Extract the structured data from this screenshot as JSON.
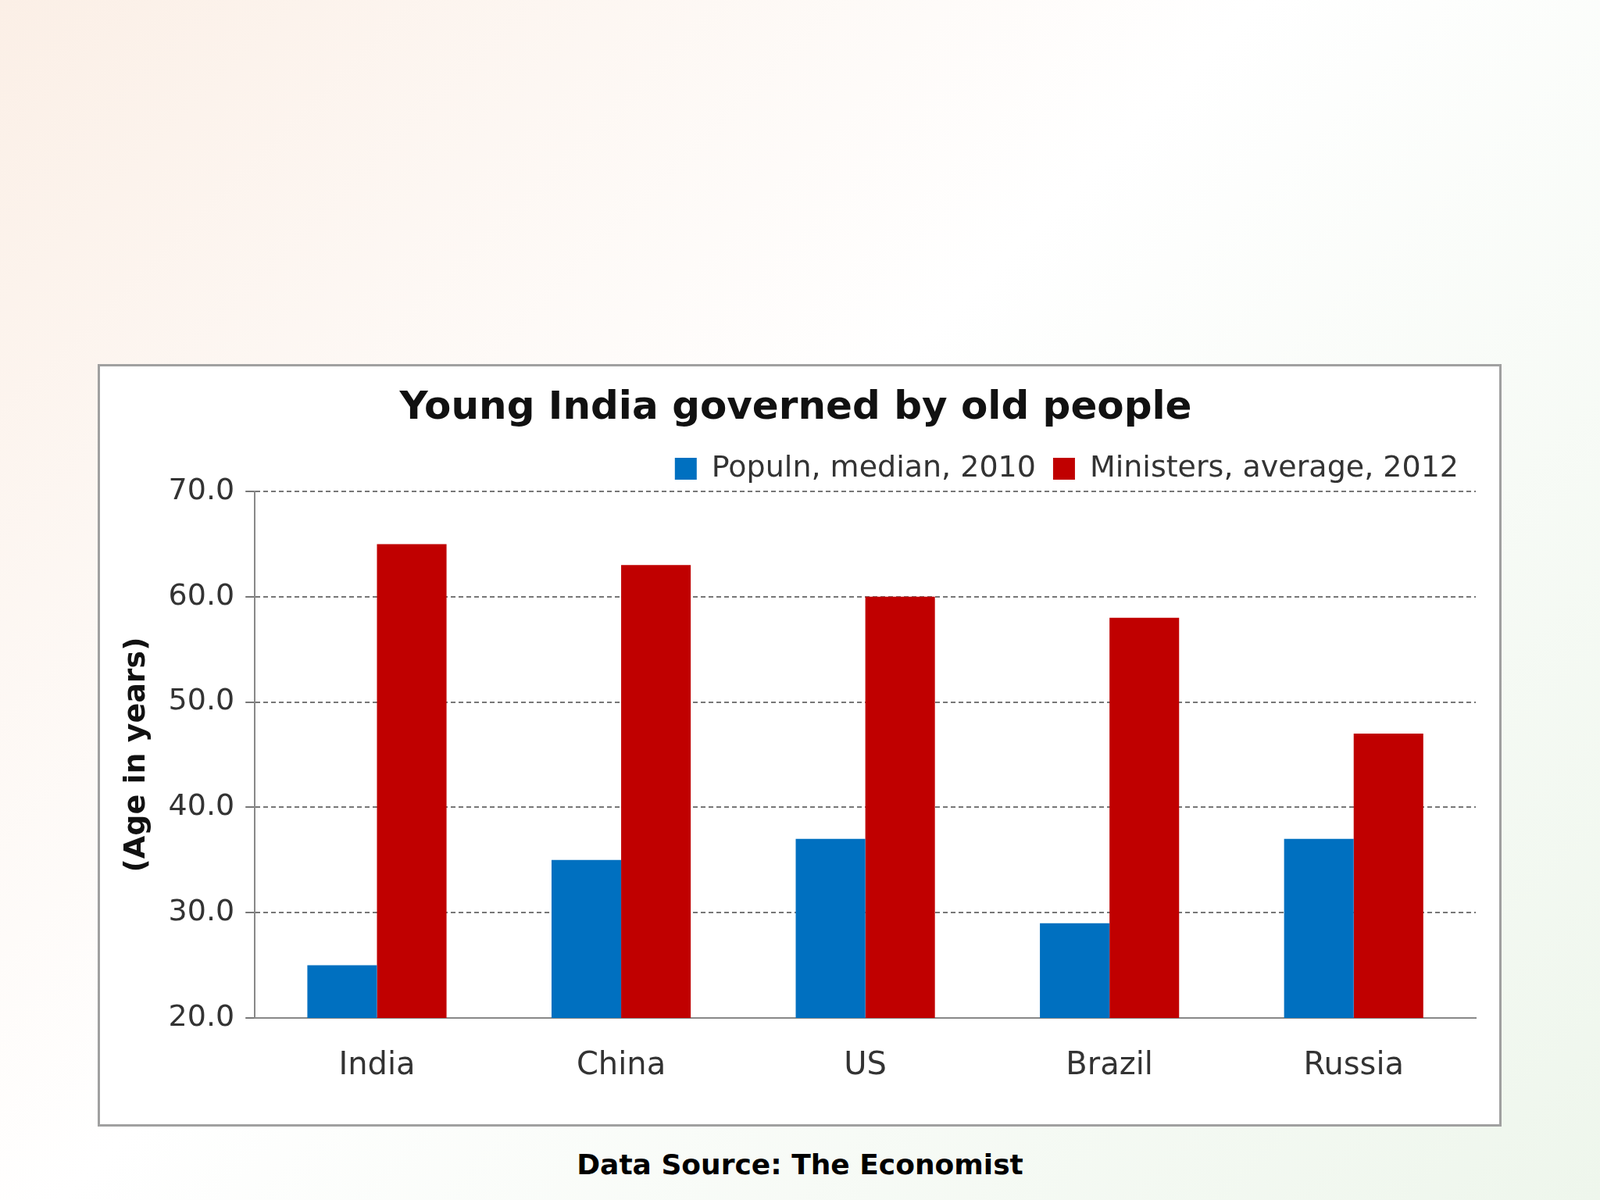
{
  "chart_data": {
    "type": "bar",
    "title": "Young India governed by old people",
    "y_label": "(Age in years)",
    "categories": [
      "India",
      "China",
      "US",
      "Brazil",
      "Russia"
    ],
    "series": [
      {
        "name": "Populn, median, 2010",
        "color": "#0070c0",
        "values": [
          25,
          35,
          37,
          29,
          37
        ]
      },
      {
        "name": "Ministers, average, 2012",
        "color": "#c00000",
        "values": [
          65,
          63,
          60,
          58,
          47
        ]
      }
    ],
    "ylim": [
      20,
      70
    ],
    "yticks": [
      {
        "value": 20,
        "label": "20.0"
      },
      {
        "value": 30,
        "label": "30.0"
      },
      {
        "value": 40,
        "label": "40.0"
      },
      {
        "value": 50,
        "label": "50.0"
      },
      {
        "value": 60,
        "label": "60.0"
      },
      {
        "value": 70,
        "label": "70.0"
      }
    ],
    "grid": true,
    "legend": "top",
    "annotations": [
      "Data Source: The Economist"
    ]
  }
}
